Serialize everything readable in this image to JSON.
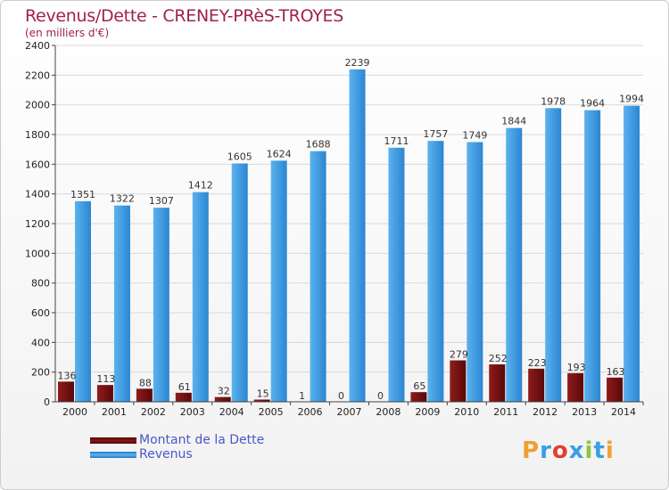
{
  "title": "Revenus/Dette - CRENEY-PRèS-TROYES",
  "subtitle": "(en milliers d'€)",
  "colors": {
    "dette": "#7a0f0f",
    "revenus": "#3a9ee4",
    "title": "#a0224d",
    "grid": "#d8d8d8"
  },
  "chart_data": {
    "type": "bar",
    "categories": [
      "2000",
      "2001",
      "2002",
      "2003",
      "2004",
      "2005",
      "2006",
      "2007",
      "2008",
      "2009",
      "2010",
      "2011",
      "2012",
      "2013",
      "2014"
    ],
    "series": [
      {
        "name": "Montant de la Dette",
        "values": [
          136,
          113,
          88,
          61,
          32,
          15,
          1,
          0,
          0,
          65,
          279,
          252,
          223,
          193,
          163
        ]
      },
      {
        "name": "Revenus",
        "values": [
          1351,
          1322,
          1307,
          1412,
          1605,
          1624,
          1688,
          2239,
          1711,
          1757,
          1749,
          1844,
          1978,
          1964,
          1994
        ]
      }
    ],
    "y_ticks": [
      0,
      200,
      400,
      600,
      800,
      1000,
      1200,
      1400,
      1600,
      1800,
      2000,
      2200,
      2400
    ],
    "ylim": [
      0,
      2400
    ],
    "grid": true,
    "legend": "bottom-left"
  },
  "legend": {
    "dette_label": "Montant de la Dette",
    "revenus_label": "Revenus"
  },
  "logo": {
    "letters": [
      "P",
      "r",
      "o",
      "x",
      "i",
      "t",
      "i"
    ],
    "colors": [
      "#f0a030",
      "#3a9ee4",
      "#e04030",
      "#3a9ee4",
      "#8cc63f",
      "#3a9ee4",
      "#f0a030"
    ]
  }
}
